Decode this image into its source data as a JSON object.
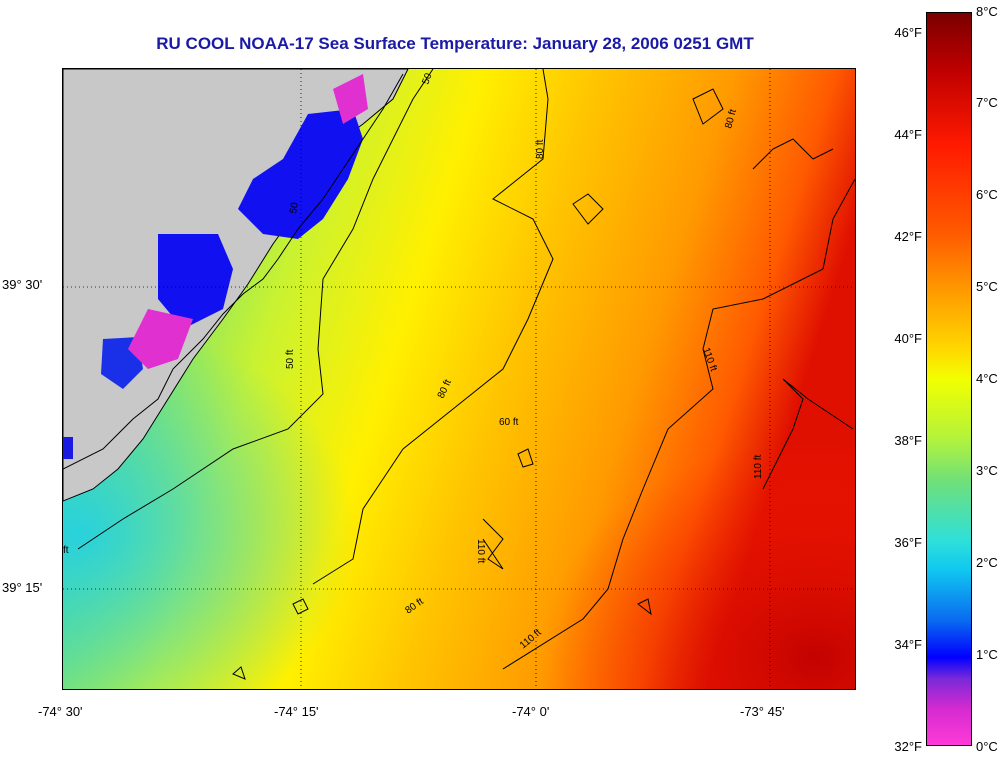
{
  "title": "RU COOL  NOAA-17  Sea Surface Temperature:  January 28, 2006 0251 GMT",
  "lat_labels": [
    "39° 30'",
    "39° 15'"
  ],
  "lon_labels": [
    "-74° 30'",
    "-74° 15'",
    "-74° 0'",
    "-73° 45'"
  ],
  "contour_labels": [
    "50",
    "80 ft",
    "50 ft",
    "80 ft",
    "60 ft",
    "80 ft",
    "110 ft",
    "110 ft",
    "110 ft",
    "80 ft",
    "110 ft",
    "ft",
    "50"
  ],
  "colorbar": {
    "fahrenheit": [
      "46°F",
      "44°F",
      "42°F",
      "40°F",
      "38°F",
      "36°F",
      "34°F",
      "32°F"
    ],
    "celsius": [
      "8°C",
      "7°C",
      "6°C",
      "5°C",
      "4°C",
      "3°C",
      "2°C",
      "1°C",
      "0°C"
    ]
  },
  "colors": {
    "title": "#1a1aa6",
    "land": "#c8c8c8",
    "warm": "#d40000",
    "cold": "#ff3ad8"
  }
}
